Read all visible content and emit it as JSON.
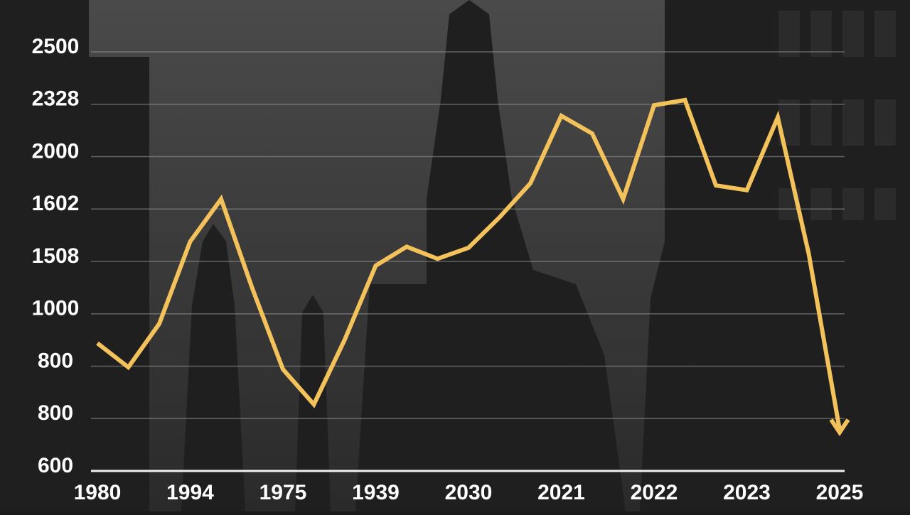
{
  "chart_data": {
    "type": "line",
    "categories": [
      "1980",
      null,
      null,
      "1994",
      null,
      null,
      "1975",
      null,
      null,
      "1939",
      null,
      null,
      "2030",
      null,
      null,
      "2021",
      null,
      null,
      "2022",
      null,
      null,
      "2023",
      null,
      null,
      "2025"
    ],
    "values": [
      2.44,
      1.98,
      2.81,
      4.38,
      5.19,
      3.5,
      1.94,
      1.27,
      2.51,
      3.92,
      4.28,
      4.05,
      4.26,
      4.84,
      5.49,
      6.78,
      6.44,
      5.19,
      6.98,
      7.08,
      5.45,
      5.36,
      6.75,
      4.15,
      0.79
    ],
    "color": "#f4c25a",
    "ylim": [
      0,
      8
    ],
    "yticks": [
      {
        "value": 0,
        "label": "600"
      },
      {
        "value": 1,
        "label": "800"
      },
      {
        "value": 2,
        "label": "800"
      },
      {
        "value": 3,
        "label": "1000"
      },
      {
        "value": 4,
        "label": "1508"
      },
      {
        "value": 5,
        "label": "1602"
      },
      {
        "value": 6,
        "label": "2000"
      },
      {
        "value": 7,
        "label": "2328"
      },
      {
        "value": 8,
        "label": "2500"
      }
    ],
    "grid": true
  }
}
